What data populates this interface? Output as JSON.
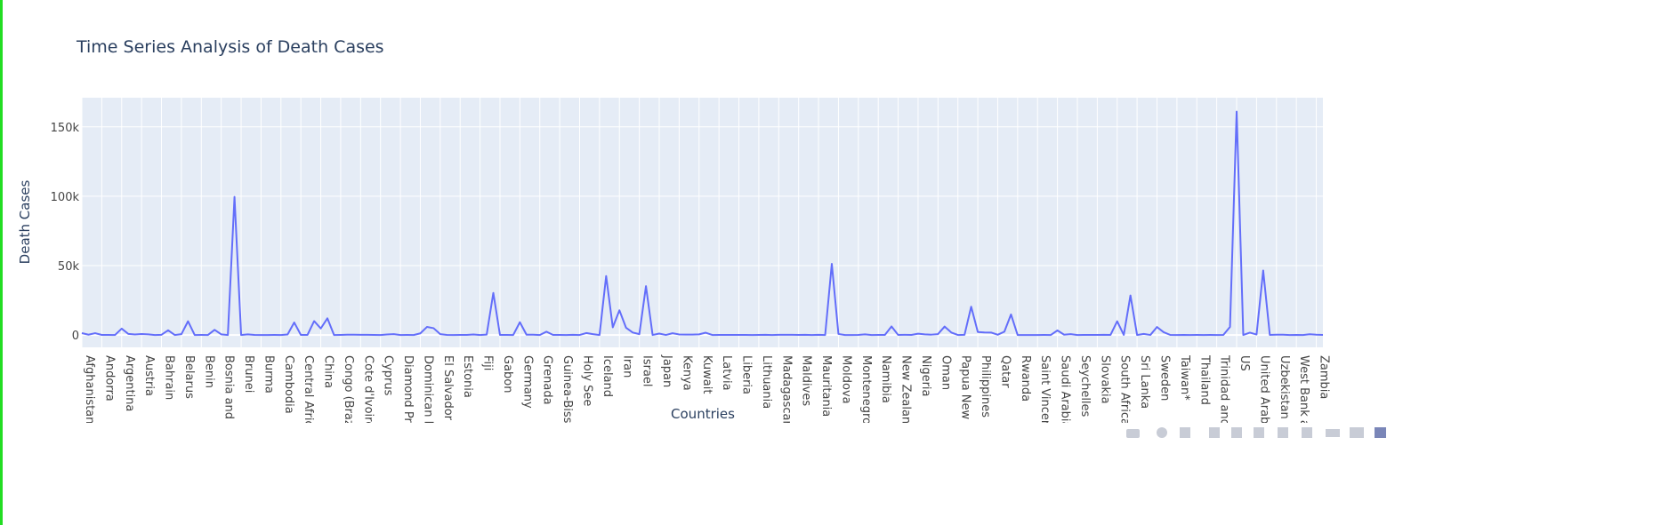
{
  "chart_data": {
    "type": "line",
    "title": "Time Series Analysis of Death Cases",
    "xlabel": "Countries",
    "ylabel": "Death Cases",
    "color": "#636efa",
    "grid": true,
    "ylim": [
      -8900,
      171000
    ],
    "yticks": [
      {
        "value": 0,
        "label": "0"
      },
      {
        "value": 50000,
        "label": "50k"
      },
      {
        "value": 100000,
        "label": "100k"
      },
      {
        "value": 150000,
        "label": "150k"
      }
    ],
    "categories": [
      "Afghanistan",
      null,
      null,
      "Andorra",
      null,
      null,
      "Argentina",
      null,
      null,
      "Austria",
      null,
      null,
      "Bahrain",
      null,
      null,
      "Belarus",
      null,
      null,
      "Benin",
      null,
      null,
      "Bosnia and Herzegovina",
      null,
      null,
      "Brunei",
      null,
      null,
      "Burma",
      null,
      null,
      "Cambodia",
      null,
      null,
      "Central African Republic",
      null,
      null,
      "China",
      null,
      null,
      "Congo (Brazzaville)",
      null,
      null,
      "Cote d'Ivoire",
      null,
      null,
      "Cyprus",
      null,
      null,
      "Diamond Princess",
      null,
      null,
      "Dominican Republic",
      null,
      null,
      "El Salvador",
      null,
      null,
      "Estonia",
      null,
      null,
      "Fiji",
      null,
      null,
      "Gabon",
      null,
      null,
      "Germany",
      null,
      null,
      "Grenada",
      null,
      null,
      "Guinea-Bissau",
      null,
      null,
      "Holy See",
      null,
      null,
      "Iceland",
      null,
      null,
      "Iran",
      null,
      null,
      "Israel",
      null,
      null,
      "Japan",
      null,
      null,
      "Kenya",
      null,
      null,
      "Kuwait",
      null,
      null,
      "Latvia",
      null,
      null,
      "Liberia",
      null,
      null,
      "Lithuania",
      null,
      null,
      "Madagascar",
      null,
      null,
      "Maldives",
      null,
      null,
      "Mauritania",
      null,
      null,
      "Moldova",
      null,
      null,
      "Montenegro",
      null,
      null,
      "Namibia",
      null,
      null,
      "New Zealand",
      null,
      null,
      "Nigeria",
      null,
      null,
      "Oman",
      null,
      null,
      "Papua New Guinea",
      null,
      null,
      "Philippines",
      null,
      null,
      "Qatar",
      null,
      null,
      "Rwanda",
      null,
      null,
      "Saint Vincent and the Grenadines",
      null,
      null,
      "Saudi Arabia",
      null,
      null,
      "Seychelles",
      null,
      null,
      "Slovakia",
      null,
      null,
      "South Africa",
      null,
      null,
      "Sri Lanka",
      null,
      null,
      "Sweden",
      null,
      null,
      "Taiwan*",
      null,
      null,
      "Thailand",
      null,
      null,
      "Trinidad and Tobago",
      null,
      null,
      "US",
      null,
      null,
      "United Arab Emirates",
      null,
      null,
      "Uzbekistan",
      null,
      null,
      "West Bank and Gaza",
      null,
      null,
      "Zambia",
      null
    ],
    "values": [
      1360,
      230,
      1300,
      53,
      80,
      3,
      4600,
      800,
      380,
      720,
      470,
      20,
      160,
      3400,
      7,
      600,
      9900,
      5,
      40,
      0,
      3700,
      500,
      6,
      99500,
      3,
      440,
      55,
      6,
      1,
      28,
      0,
      400,
      9000,
      60,
      75,
      10000,
      4700,
      12000,
      7,
      60,
      230,
      220,
      120,
      130,
      88,
      19,
      390,
      620,
      13,
      58,
      0,
      1200,
      5800,
      4900,
      600,
      80,
      0,
      63,
      50,
      400,
      1,
      330,
      30300,
      49,
      40,
      17,
      9200,
      230,
      220,
      0,
      2400,
      54,
      26,
      20,
      170,
      0,
      1400,
      600,
      10,
      42500,
      5500,
      17800,
      5200,
      1770,
      640,
      35200,
      12,
      1040,
      11,
      1250,
      400,
      300,
      300,
      470,
      1650,
      0,
      32,
      80,
      30,
      78,
      100,
      1,
      81,
      120,
      2,
      120,
      130,
      125,
      25,
      124,
      9,
      155,
      10,
      51300,
      750,
      1,
      0,
      60,
      480,
      16,
      25,
      70,
      6150,
      22,
      120,
      69,
      960,
      500,
      260,
      650,
      6100,
      1800,
      3,
      170,
      20400,
      2150,
      1800,
      1760,
      180,
      2400,
      14800,
      8,
      0,
      0,
      0,
      42,
      15,
      3300,
      230,
      640,
      0,
      68,
      27,
      30,
      120,
      93,
      9900,
      47,
      28500,
      11,
      780,
      24,
      5760,
      2000,
      60,
      7,
      70,
      21,
      58,
      0,
      23,
      8,
      52,
      5800,
      161000,
      10,
      1700,
      360,
      46500,
      37,
      200,
      220,
      20,
      60,
      1,
      520,
      250,
      100
    ]
  }
}
